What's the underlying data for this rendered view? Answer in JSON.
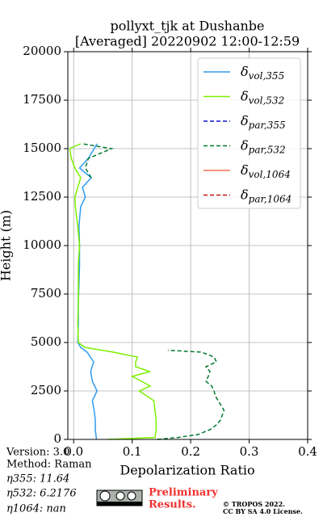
{
  "chart_data": {
    "type": "line",
    "title": "pollyxt_tjk at Dushanbe",
    "subtitle": "[Averaged] 20220902 12:00-12:59",
    "x_label": "Depolarization Ratio",
    "y_label": "Height (m)",
    "xlim": [
      -0.01,
      0.4
    ],
    "ylim": [
      0,
      20000
    ],
    "xticks": [
      {
        "value": 0,
        "label": "0.0"
      },
      0.1,
      0.2,
      0.3,
      0.4
    ],
    "yticks": [
      0,
      2500,
      5000,
      7500,
      10000,
      12500,
      15000,
      17500,
      20000
    ],
    "grid": true,
    "legend": "upper right",
    "series": [
      {
        "name": "δvol,355",
        "color": "#2e9cf0",
        "linestyle": "solid",
        "y": [
          0,
          500,
          1000,
          1500,
          2000,
          2500,
          3000,
          3500,
          4000,
          4500,
          4750,
          5000,
          6000,
          7000,
          8000,
          9000,
          10000,
          11000,
          12000,
          12500,
          13000,
          13500,
          14000,
          14500,
          15000,
          15250
        ],
        "values": [
          0.039,
          0.037,
          0.037,
          0.035,
          0.032,
          0.04,
          0.032,
          0.029,
          0.034,
          0.023,
          0.012,
          0.007,
          0.008,
          0.008,
          0.009,
          0.01,
          0.01,
          0.009,
          0.012,
          0.02,
          0.015,
          0.03,
          0.01,
          0.025,
          0.035,
          0.04
        ]
      },
      {
        "name": "δvol,532",
        "color": "#7cf000",
        "linestyle": "solid",
        "y": [
          0,
          100,
          500,
          1000,
          1500,
          2000,
          2500,
          2750,
          3000,
          3250,
          3500,
          3750,
          4000,
          4250,
          4500,
          4750,
          5000,
          6000,
          7000,
          8000,
          9000,
          10000,
          11000,
          12000,
          12500,
          13000,
          13500,
          14000,
          14500,
          15000,
          15250
        ],
        "values": [
          0.058,
          0.139,
          0.141,
          0.141,
          0.139,
          0.137,
          0.112,
          0.131,
          0.116,
          0.1,
          0.13,
          0.106,
          0.106,
          0.109,
          0.068,
          0.019,
          0.008,
          0.007,
          0.008,
          0.008,
          0.008,
          0.01,
          0.007,
          0.003,
          0.002,
          0.007,
          0.012,
          0.002,
          -0.004,
          -0.007,
          0.012
        ]
      },
      {
        "name": "δpar,355",
        "color": "#1010d0",
        "linestyle": "dashed",
        "y": [],
        "values": []
      },
      {
        "name": "δpar,532",
        "color": "#007a30",
        "linestyle": "dashed",
        "y": [
          0,
          100,
          250,
          500,
          750,
          1000,
          1500,
          2000,
          2250,
          2500,
          2750,
          3000,
          3250,
          3500,
          3750,
          4000,
          4250,
          4500,
          4600,
          12600,
          13500,
          14000,
          14500,
          15000,
          15250
        ],
        "values": [
          0.143,
          0.178,
          0.212,
          0.233,
          0.244,
          0.251,
          0.257,
          0.247,
          0.242,
          0.24,
          0.236,
          0.226,
          0.23,
          0.233,
          0.226,
          0.244,
          0.24,
          0.219,
          0.161,
          null,
          0.03,
          0.02,
          0.025,
          0.065,
          0.015
        ]
      },
      {
        "name": "δvol,1064",
        "color": "#f07050",
        "linestyle": "solid",
        "y": [],
        "values": []
      },
      {
        "name": "δpar,1064",
        "color": "#c01010",
        "linestyle": "dashed",
        "y": [],
        "values": []
      }
    ],
    "footer": {
      "version": "Version: 3.0",
      "method": "Method: Raman",
      "eta355": "η355:  11.64",
      "eta532": "η532: 6.2176",
      "eta1064": "η1064:    nan",
      "preliminary": "Preliminary",
      "results": "Results.",
      "copyright": "© TROPOS 2022.",
      "license": "CC BY SA 4.0 License."
    }
  }
}
